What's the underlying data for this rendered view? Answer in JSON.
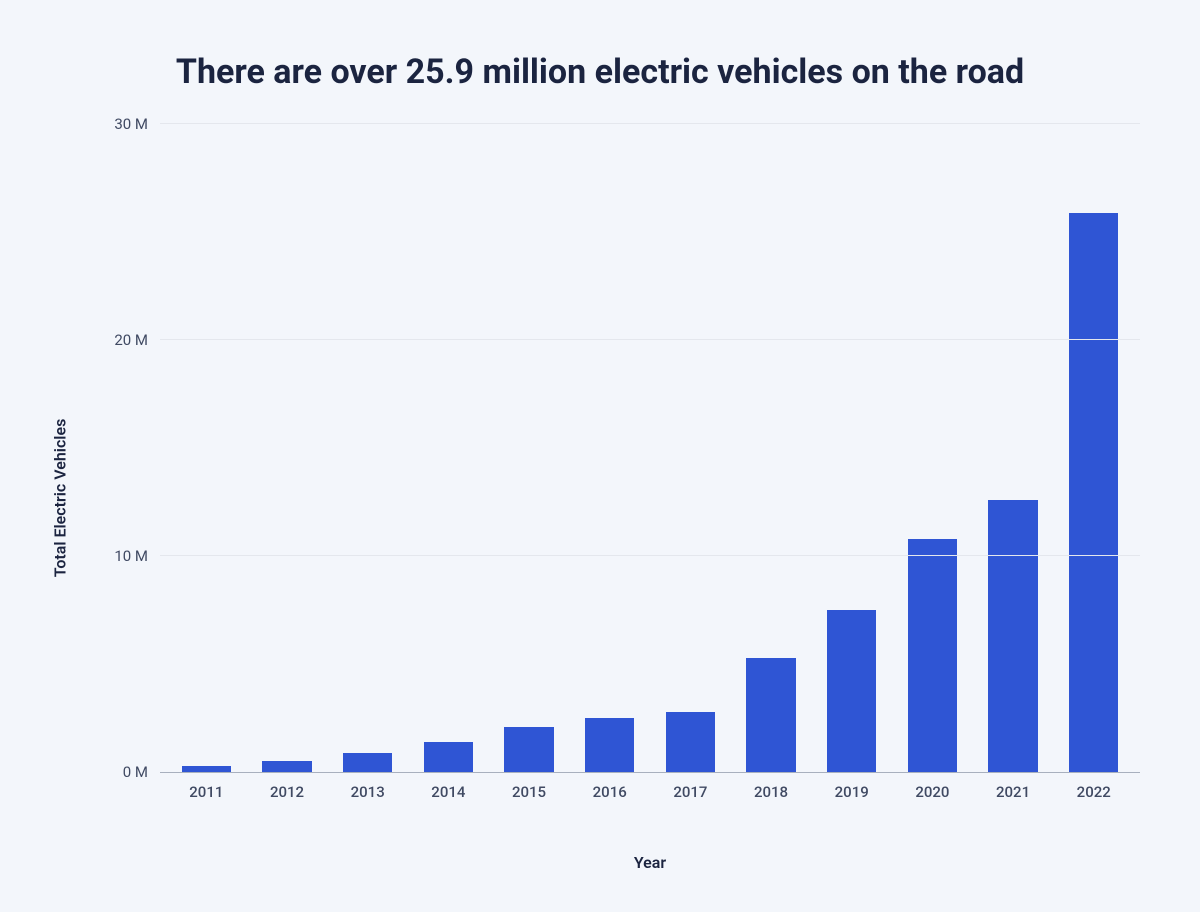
{
  "chart": {
    "type": "bar",
    "title": "There are over 25.9 million electric vehicles on the road",
    "title_fontsize": 34,
    "title_color": "#1b2440",
    "ylabel": "Total Electric Vehicles",
    "xlabel": "Year",
    "axis_label_fontsize": 16,
    "axis_label_color": "#1b2440",
    "background_color": "#f3f6fb",
    "grid_color": "#e4e7ed",
    "axis_line_color": "#a8b0be",
    "tick_font_color": "#404a63",
    "tick_fontsize": 15,
    "bar_color": "#2f55d4",
    "bar_width_ratio": 0.72,
    "ylim": [
      0,
      30
    ],
    "yticks": [
      {
        "value": 30,
        "label": "30 M"
      },
      {
        "value": 20,
        "label": "20 M"
      },
      {
        "value": 10,
        "label": "10 M"
      },
      {
        "value": 0,
        "label": "0 M"
      }
    ],
    "categories": [
      "2011",
      "2012",
      "2013",
      "2014",
      "2015",
      "2016",
      "2017",
      "2018",
      "2019",
      "2020",
      "2021",
      "2022"
    ],
    "values": [
      0.3,
      0.5,
      0.9,
      1.4,
      2.1,
      2.5,
      2.8,
      5.3,
      7.5,
      10.8,
      12.6,
      25.9
    ]
  }
}
